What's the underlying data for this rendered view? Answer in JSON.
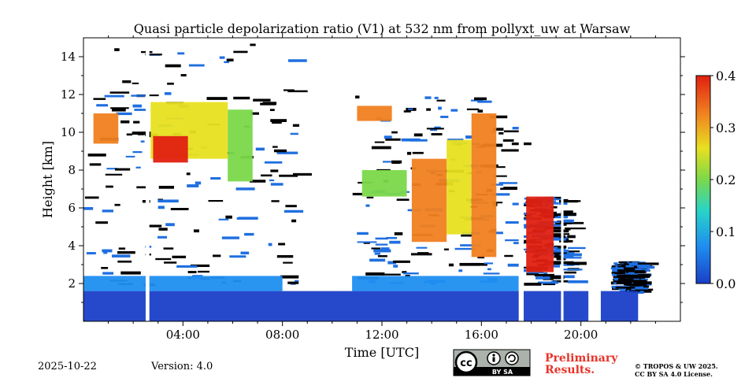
{
  "chart_data": {
    "type": "heatmap",
    "title": "Quasi particle depolarization ratio (V1) at 532 nm from pollyxt_uw at Warsaw",
    "xlabel": "Time [UTC]",
    "ylabel": "Height [km]",
    "xlim_hours": [
      0,
      24
    ],
    "ylim_km": [
      0,
      15
    ],
    "x_ticks": [
      {
        "value": 4,
        "label": "04:00"
      },
      {
        "value": 8,
        "label": "08:00"
      },
      {
        "value": 12,
        "label": "12:00"
      },
      {
        "value": 16,
        "label": "16:00"
      },
      {
        "value": 20,
        "label": "20:00"
      }
    ],
    "y_ticks": [
      {
        "value": 2,
        "label": "2"
      },
      {
        "value": 4,
        "label": "4"
      },
      {
        "value": 6,
        "label": "6"
      },
      {
        "value": 8,
        "label": "8"
      },
      {
        "value": 10,
        "label": "10"
      },
      {
        "value": 12,
        "label": "12"
      },
      {
        "value": 14,
        "label": "14"
      }
    ],
    "colorbar": {
      "range": [
        0.0,
        0.4
      ],
      "ticks": [
        {
          "value": 0.0,
          "label": "0.0"
        },
        {
          "value": 0.1,
          "label": "0.1"
        },
        {
          "value": 0.2,
          "label": "0.2"
        },
        {
          "value": 0.3,
          "label": "0.3"
        },
        {
          "value": 0.4,
          "label": "0.4"
        }
      ],
      "colormap": [
        "#1a3fc8",
        "#1f8ef0",
        "#28d4c8",
        "#7bd84a",
        "#e8e020",
        "#f08020",
        "#e02010"
      ]
    },
    "regions": [
      {
        "name": "boundary-layer",
        "t0": 0.0,
        "t1": 22.3,
        "h0": 0.0,
        "h1": 1.6,
        "value": 0.02
      },
      {
        "name": "boundary-layer-top",
        "t0": 0.0,
        "t1": 8.0,
        "h0": 1.6,
        "h1": 2.4,
        "value": 0.04
      },
      {
        "name": "boundary-layer-top",
        "t0": 10.8,
        "t1": 17.5,
        "h0": 1.6,
        "h1": 2.4,
        "value": 0.04
      },
      {
        "name": "cirrus-early",
        "t0": 0.4,
        "t1": 1.4,
        "h0": 9.4,
        "h1": 11.0,
        "value": 0.35
      },
      {
        "name": "cirrus-early",
        "t0": 2.7,
        "t1": 5.8,
        "h0": 8.6,
        "h1": 11.6,
        "value": 0.3
      },
      {
        "name": "cirrus-early-b",
        "t0": 5.8,
        "t1": 6.8,
        "h0": 7.4,
        "h1": 11.2,
        "value": 0.18
      },
      {
        "name": "cirrus-morning-core",
        "t0": 2.8,
        "t1": 4.2,
        "h0": 8.4,
        "h1": 9.8,
        "value": 0.38
      },
      {
        "name": "cirrus-midday",
        "t0": 11.0,
        "t1": 12.4,
        "h0": 10.6,
        "h1": 11.4,
        "value": 0.32
      },
      {
        "name": "cirrus-midday-b",
        "t0": 11.2,
        "t1": 13.0,
        "h0": 6.6,
        "h1": 8.0,
        "value": 0.22
      },
      {
        "name": "fallstreak-1",
        "t0": 13.2,
        "t1": 14.6,
        "h0": 4.2,
        "h1": 8.6,
        "value": 0.36
      },
      {
        "name": "fallstreak-2",
        "t0": 14.6,
        "t1": 15.6,
        "h0": 4.6,
        "h1": 9.6,
        "value": 0.3
      },
      {
        "name": "fallstreak-3",
        "t0": 15.6,
        "t1": 16.6,
        "h0": 3.4,
        "h1": 11.0,
        "value": 0.32
      },
      {
        "name": "evening-cloud",
        "t0": 17.8,
        "t1": 18.9,
        "h0": 2.6,
        "h1": 6.6,
        "value": 0.38
      }
    ],
    "no_data_gaps_hours": [
      [
        2.5,
        2.65
      ],
      [
        17.5,
        17.7
      ],
      [
        19.2,
        19.3
      ],
      [
        20.3,
        20.8
      ]
    ]
  },
  "footer": {
    "date": "2025-10-22",
    "version": "Version: 4.0",
    "preliminary_line1": "Preliminary",
    "preliminary_line2": "Results.",
    "copyright_line1": "© TROPOS & UW 2025.",
    "copyright_line2": "CC BY SA 4.0 License.",
    "license_badge": "BY SA"
  }
}
